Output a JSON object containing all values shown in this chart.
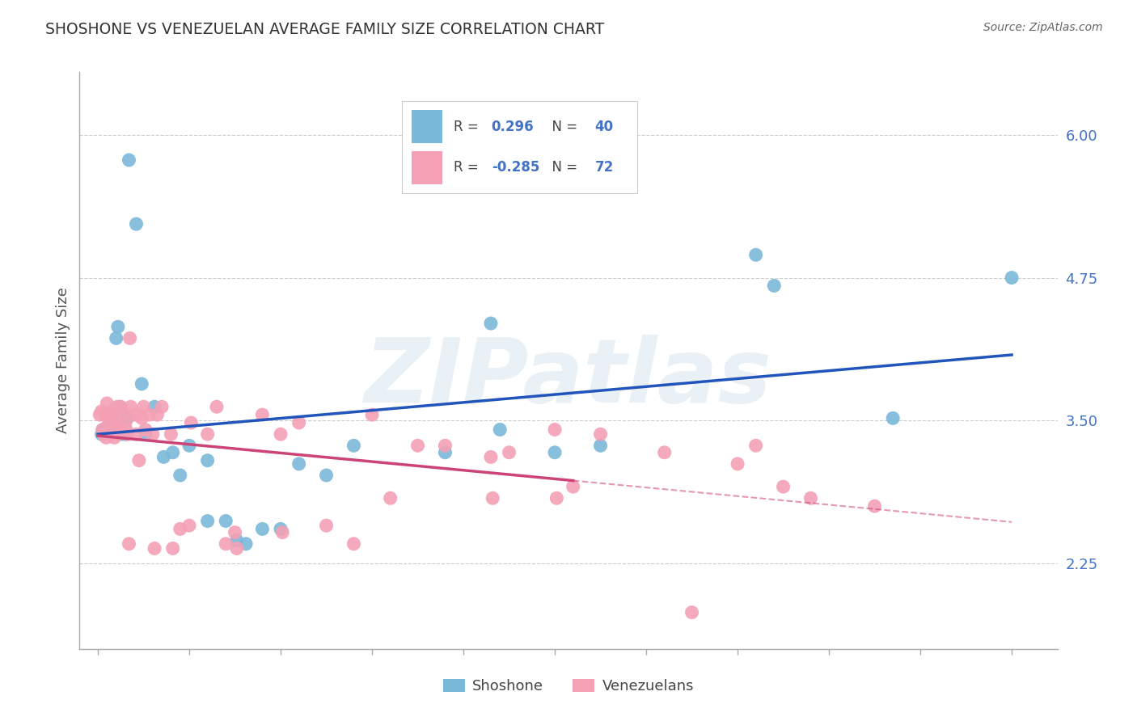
{
  "title": "SHOSHONE VS VENEZUELAN AVERAGE FAMILY SIZE CORRELATION CHART",
  "source": "Source: ZipAtlas.com",
  "ylabel": "Average Family Size",
  "ylim": [
    1.5,
    6.55
  ],
  "xlim": [
    -0.02,
    1.05
  ],
  "yticks": [
    2.25,
    3.5,
    4.75,
    6.0
  ],
  "shoshone_R": 0.296,
  "shoshone_N": 40,
  "venezuelan_R": -0.285,
  "venezuelan_N": 72,
  "shoshone_color": "#7ab8d9",
  "venezuelan_color": "#f4a0b5",
  "shoshone_line_color": "#2255bb",
  "venezuelan_line_color": "#cc4477",
  "shoshone_scatter": [
    [
      0.004,
      3.38
    ],
    [
      0.006,
      3.42
    ],
    [
      0.009,
      3.55
    ],
    [
      0.012,
      3.45
    ],
    [
      0.014,
      3.52
    ],
    [
      0.016,
      3.48
    ],
    [
      0.02,
      4.22
    ],
    [
      0.022,
      4.32
    ],
    [
      0.024,
      3.62
    ],
    [
      0.026,
      3.38
    ],
    [
      0.03,
      3.38
    ],
    [
      0.032,
      3.52
    ],
    [
      0.034,
      5.78
    ],
    [
      0.042,
      5.22
    ],
    [
      0.048,
      3.82
    ],
    [
      0.052,
      3.38
    ],
    [
      0.062,
      3.62
    ],
    [
      0.072,
      3.18
    ],
    [
      0.082,
      3.22
    ],
    [
      0.09,
      3.02
    ],
    [
      0.1,
      3.28
    ],
    [
      0.12,
      3.15
    ],
    [
      0.12,
      2.62
    ],
    [
      0.14,
      2.62
    ],
    [
      0.152,
      2.45
    ],
    [
      0.162,
      2.42
    ],
    [
      0.18,
      2.55
    ],
    [
      0.2,
      2.55
    ],
    [
      0.22,
      3.12
    ],
    [
      0.25,
      3.02
    ],
    [
      0.28,
      3.28
    ],
    [
      0.38,
      3.22
    ],
    [
      0.43,
      4.35
    ],
    [
      0.44,
      3.42
    ],
    [
      0.5,
      3.22
    ],
    [
      0.55,
      3.28
    ],
    [
      0.72,
      4.95
    ],
    [
      0.74,
      4.68
    ],
    [
      0.87,
      3.52
    ],
    [
      1.0,
      4.75
    ]
  ],
  "venezuelan_scatter": [
    [
      0.002,
      3.55
    ],
    [
      0.004,
      3.58
    ],
    [
      0.005,
      3.42
    ],
    [
      0.006,
      3.38
    ],
    [
      0.008,
      3.55
    ],
    [
      0.009,
      3.35
    ],
    [
      0.01,
      3.65
    ],
    [
      0.012,
      3.48
    ],
    [
      0.013,
      3.55
    ],
    [
      0.014,
      3.38
    ],
    [
      0.015,
      3.42
    ],
    [
      0.016,
      3.58
    ],
    [
      0.018,
      3.35
    ],
    [
      0.019,
      3.52
    ],
    [
      0.02,
      3.45
    ],
    [
      0.021,
      3.62
    ],
    [
      0.022,
      3.38
    ],
    [
      0.025,
      3.62
    ],
    [
      0.026,
      3.42
    ],
    [
      0.028,
      3.55
    ],
    [
      0.03,
      3.48
    ],
    [
      0.031,
      3.42
    ],
    [
      0.032,
      3.38
    ],
    [
      0.034,
      2.42
    ],
    [
      0.035,
      4.22
    ],
    [
      0.036,
      3.62
    ],
    [
      0.04,
      3.55
    ],
    [
      0.042,
      3.38
    ],
    [
      0.044,
      3.55
    ],
    [
      0.045,
      3.15
    ],
    [
      0.048,
      3.52
    ],
    [
      0.05,
      3.62
    ],
    [
      0.052,
      3.42
    ],
    [
      0.056,
      3.55
    ],
    [
      0.06,
      3.38
    ],
    [
      0.062,
      2.38
    ],
    [
      0.065,
      3.55
    ],
    [
      0.07,
      3.62
    ],
    [
      0.08,
      3.38
    ],
    [
      0.082,
      2.38
    ],
    [
      0.09,
      2.55
    ],
    [
      0.1,
      2.58
    ],
    [
      0.102,
      3.48
    ],
    [
      0.12,
      3.38
    ],
    [
      0.13,
      3.62
    ],
    [
      0.14,
      2.42
    ],
    [
      0.15,
      2.52
    ],
    [
      0.152,
      2.38
    ],
    [
      0.18,
      3.55
    ],
    [
      0.2,
      3.38
    ],
    [
      0.202,
      2.52
    ],
    [
      0.22,
      3.48
    ],
    [
      0.25,
      2.58
    ],
    [
      0.28,
      2.42
    ],
    [
      0.3,
      3.55
    ],
    [
      0.32,
      2.82
    ],
    [
      0.35,
      3.28
    ],
    [
      0.38,
      3.28
    ],
    [
      0.43,
      3.18
    ],
    [
      0.432,
      2.82
    ],
    [
      0.45,
      3.22
    ],
    [
      0.5,
      3.42
    ],
    [
      0.502,
      2.82
    ],
    [
      0.52,
      2.92
    ],
    [
      0.55,
      3.38
    ],
    [
      0.62,
      3.22
    ],
    [
      0.65,
      1.82
    ],
    [
      0.7,
      3.12
    ],
    [
      0.72,
      3.28
    ],
    [
      0.75,
      2.92
    ],
    [
      0.78,
      2.82
    ],
    [
      0.85,
      2.75
    ]
  ],
  "watermark": "ZIPatlas",
  "grid_color": "#cccccc",
  "bg_color": "#ffffff",
  "tick_color": "#4472c4",
  "title_color": "#333333"
}
